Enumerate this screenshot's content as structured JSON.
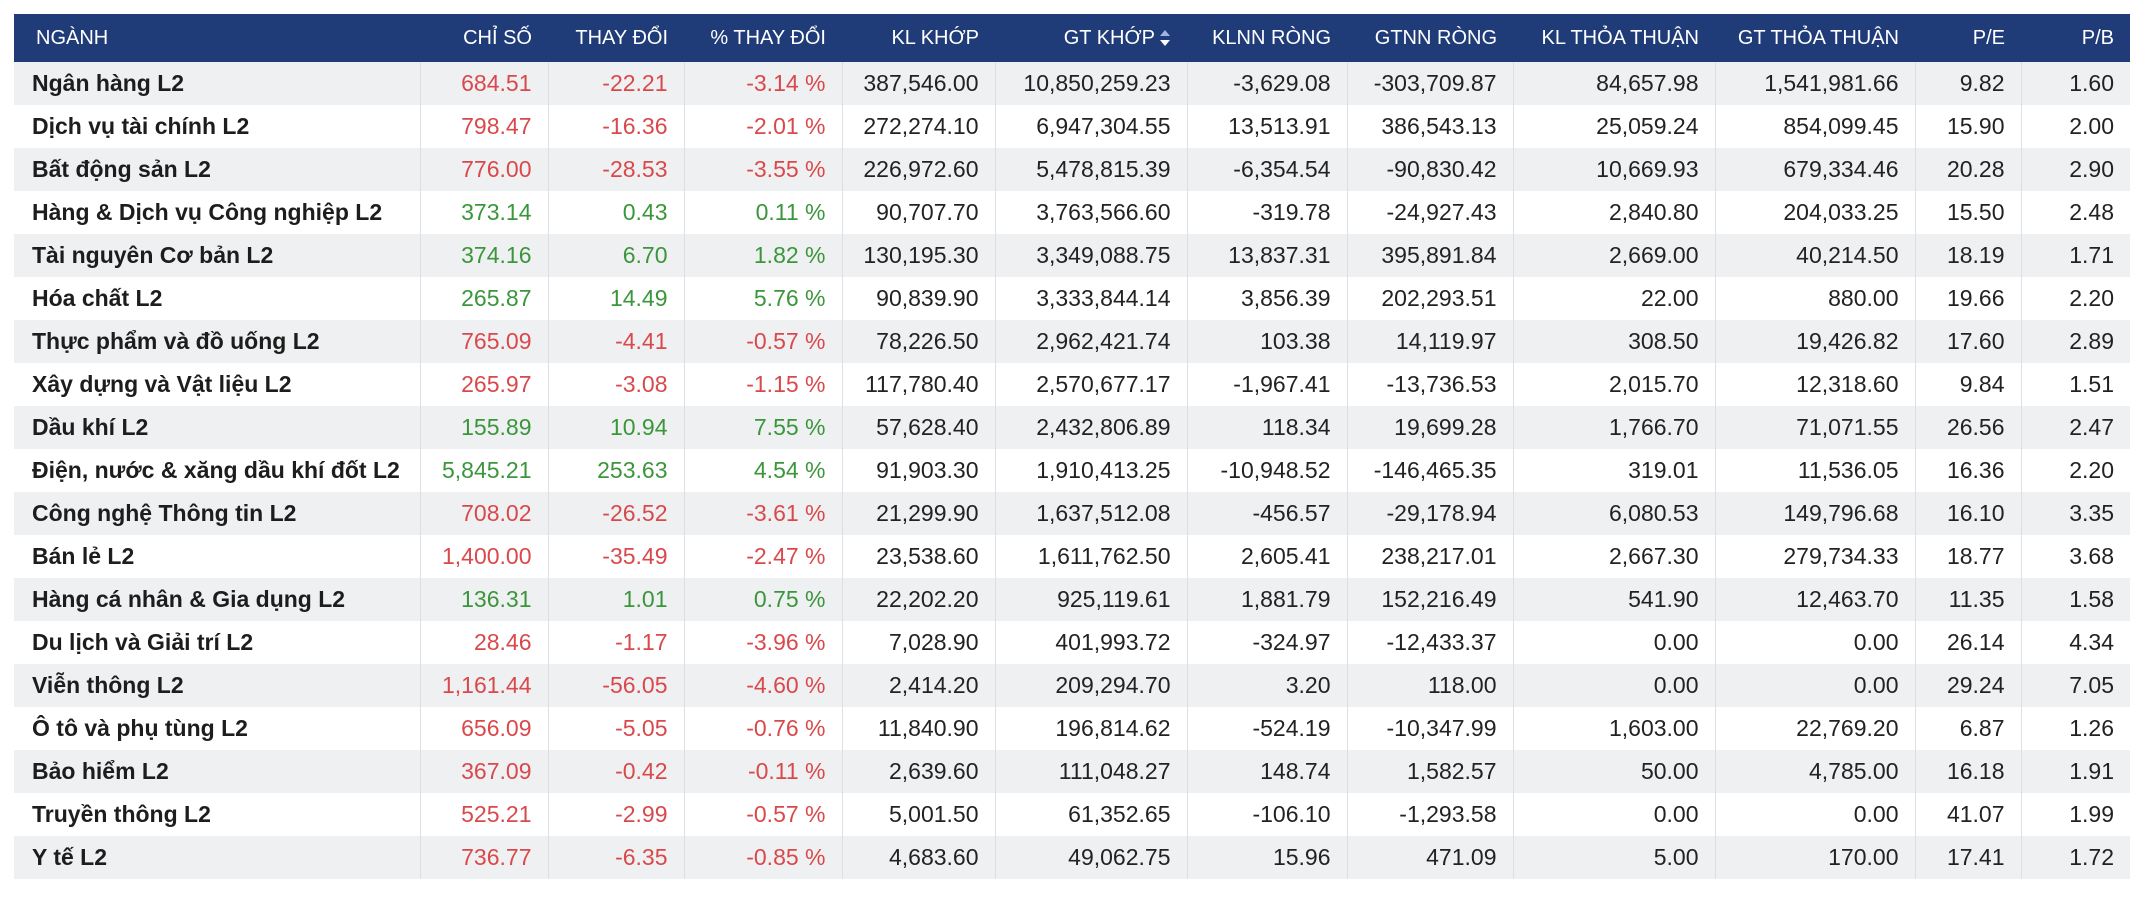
{
  "header": {
    "columns": [
      "NGÀNH",
      "CHỈ SỐ",
      "THAY ĐỔI",
      "% THAY ĐỔI",
      "KL KHỚP",
      "GT KHỚP",
      "KLNN RÒNG",
      "GTNN RÒNG",
      "KL THỎA THUẬN",
      "GT THỎA THUẬN",
      "P/E",
      "P/B"
    ]
  },
  "table": {
    "rows": [
      [
        "Ngân hàng L2",
        "684.51",
        "-22.21",
        "-3.14 %",
        "387,546.00",
        "10,850,259.23",
        "-3,629.08",
        "-303,709.87",
        "84,657.98",
        "1,541,981.66",
        "9.82",
        "1.60"
      ],
      [
        "Dịch vụ tài chính L2",
        "798.47",
        "-16.36",
        "-2.01 %",
        "272,274.10",
        "6,947,304.55",
        "13,513.91",
        "386,543.13",
        "25,059.24",
        "854,099.45",
        "15.90",
        "2.00"
      ],
      [
        "Bất động sản L2",
        "776.00",
        "-28.53",
        "-3.55 %",
        "226,972.60",
        "5,478,815.39",
        "-6,354.54",
        "-90,830.42",
        "10,669.93",
        "679,334.46",
        "20.28",
        "2.90"
      ],
      [
        "Hàng & Dịch vụ Công nghiệp L2",
        "373.14",
        "0.43",
        "0.11 %",
        "90,707.70",
        "3,763,566.60",
        "-319.78",
        "-24,927.43",
        "2,840.80",
        "204,033.25",
        "15.50",
        "2.48"
      ],
      [
        "Tài nguyên Cơ bản L2",
        "374.16",
        "6.70",
        "1.82 %",
        "130,195.30",
        "3,349,088.75",
        "13,837.31",
        "395,891.84",
        "2,669.00",
        "40,214.50",
        "18.19",
        "1.71"
      ],
      [
        "Hóa chất L2",
        "265.87",
        "14.49",
        "5.76 %",
        "90,839.90",
        "3,333,844.14",
        "3,856.39",
        "202,293.51",
        "22.00",
        "880.00",
        "19.66",
        "2.20"
      ],
      [
        "Thực phẩm và đồ uống L2",
        "765.09",
        "-4.41",
        "-0.57 %",
        "78,226.50",
        "2,962,421.74",
        "103.38",
        "14,119.97",
        "308.50",
        "19,426.82",
        "17.60",
        "2.89"
      ],
      [
        "Xây dựng và Vật liệu L2",
        "265.97",
        "-3.08",
        "-1.15 %",
        "117,780.40",
        "2,570,677.17",
        "-1,967.41",
        "-13,736.53",
        "2,015.70",
        "12,318.60",
        "9.84",
        "1.51"
      ],
      [
        "Dầu khí L2",
        "155.89",
        "10.94",
        "7.55 %",
        "57,628.40",
        "2,432,806.89",
        "118.34",
        "19,699.28",
        "1,766.70",
        "71,071.55",
        "26.56",
        "2.47"
      ],
      [
        "Điện, nước & xăng dầu khí đốt L2",
        "5,845.21",
        "253.63",
        "4.54 %",
        "91,903.30",
        "1,910,413.25",
        "-10,948.52",
        "-146,465.35",
        "319.01",
        "11,536.05",
        "16.36",
        "2.20"
      ],
      [
        "Công nghệ Thông tin L2",
        "708.02",
        "-26.52",
        "-3.61 %",
        "21,299.90",
        "1,637,512.08",
        "-456.57",
        "-29,178.94",
        "6,080.53",
        "149,796.68",
        "16.10",
        "3.35"
      ],
      [
        "Bán lẻ L2",
        "1,400.00",
        "-35.49",
        "-2.47 %",
        "23,538.60",
        "1,611,762.50",
        "2,605.41",
        "238,217.01",
        "2,667.30",
        "279,734.33",
        "18.77",
        "3.68"
      ],
      [
        "Hàng cá nhân & Gia dụng L2",
        "136.31",
        "1.01",
        "0.75 %",
        "22,202.20",
        "925,119.61",
        "1,881.79",
        "152,216.49",
        "541.90",
        "12,463.70",
        "11.35",
        "1.58"
      ],
      [
        "Du lịch và Giải trí L2",
        "28.46",
        "-1.17",
        "-3.96 %",
        "7,028.90",
        "401,993.72",
        "-324.97",
        "-12,433.37",
        "0.00",
        "0.00",
        "26.14",
        "4.34"
      ],
      [
        "Viễn thông L2",
        "1,161.44",
        "-56.05",
        "-4.60 %",
        "2,414.20",
        "209,294.70",
        "3.20",
        "118.00",
        "0.00",
        "0.00",
        "29.24",
        "7.05"
      ],
      [
        "Ô tô và phụ tùng L2",
        "656.09",
        "-5.05",
        "-0.76 %",
        "11,840.90",
        "196,814.62",
        "-524.19",
        "-10,347.99",
        "1,603.00",
        "22,769.20",
        "6.87",
        "1.26"
      ],
      [
        "Bảo hiểm L2",
        "367.09",
        "-0.42",
        "-0.11 %",
        "2,639.60",
        "111,048.27",
        "148.74",
        "1,582.57",
        "50.00",
        "4,785.00",
        "16.18",
        "1.91"
      ],
      [
        "Truyền thông L2",
        "525.21",
        "-2.99",
        "-0.57 %",
        "5,001.50",
        "61,352.65",
        "-106.10",
        "-1,293.58",
        "0.00",
        "0.00",
        "41.07",
        "1.99"
      ],
      [
        "Y tế L2",
        "736.77",
        "-6.35",
        "-0.85 %",
        "4,683.60",
        "49,062.75",
        "15.96",
        "471.09",
        "5.00",
        "170.00",
        "17.41",
        "1.72"
      ]
    ]
  }
}
